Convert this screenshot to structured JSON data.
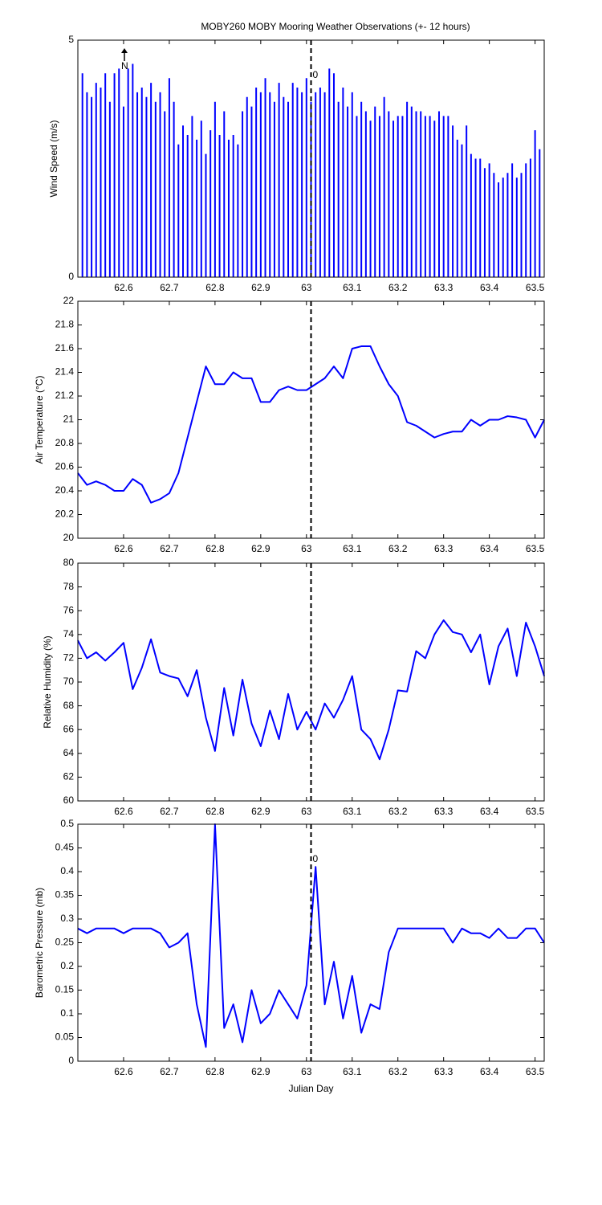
{
  "chart_data": [
    {
      "type": "stick",
      "title": "MOBY260 MOBY Mooring Weather Observations (+- 12 hours)",
      "ylabel": "Wind Speed (m/s)",
      "color": "#0000ff",
      "xlim": [
        62.5,
        63.52
      ],
      "xticks": [
        62.6,
        62.7,
        62.8,
        62.9,
        63,
        63.1,
        63.2,
        63.3,
        63.4,
        63.5
      ],
      "ylim": [
        0,
        5
      ],
      "yticks": [
        0,
        5
      ],
      "vline": 63.01,
      "north_label": "N",
      "marker_label": "0",
      "x": [
        62.51,
        62.52,
        62.53,
        62.54,
        62.55,
        62.56,
        62.57,
        62.58,
        62.59,
        62.6,
        62.61,
        62.62,
        62.63,
        62.64,
        62.65,
        62.66,
        62.67,
        62.68,
        62.69,
        62.7,
        62.71,
        62.72,
        62.73,
        62.74,
        62.75,
        62.76,
        62.77,
        62.78,
        62.79,
        62.8,
        62.81,
        62.82,
        62.83,
        62.84,
        62.85,
        62.86,
        62.87,
        62.88,
        62.89,
        62.9,
        62.91,
        62.92,
        62.93,
        62.94,
        62.95,
        62.96,
        62.97,
        62.98,
        62.99,
        63,
        63.01,
        63.02,
        63.03,
        63.04,
        63.05,
        63.06,
        63.07,
        63.08,
        63.09,
        63.1,
        63.11,
        63.12,
        63.13,
        63.14,
        63.15,
        63.16,
        63.17,
        63.18,
        63.19,
        63.2,
        63.21,
        63.22,
        63.23,
        63.24,
        63.25,
        63.26,
        63.27,
        63.28,
        63.29,
        63.3,
        63.31,
        63.32,
        63.33,
        63.34,
        63.35,
        63.36,
        63.37,
        63.38,
        63.39,
        63.4,
        63.41,
        63.42,
        63.43,
        63.44,
        63.45,
        63.46,
        63.47,
        63.48,
        63.49,
        63.5,
        63.51
      ],
      "values": [
        4.3,
        3.9,
        3.8,
        4.1,
        4.0,
        4.3,
        3.7,
        4.3,
        4.4,
        3.6,
        4.4,
        4.5,
        3.9,
        4.0,
        3.8,
        4.1,
        3.7,
        3.9,
        3.5,
        4.2,
        3.7,
        2.8,
        3.2,
        3.0,
        3.4,
        2.9,
        3.3,
        2.6,
        3.1,
        3.7,
        3.0,
        3.5,
        2.9,
        3.0,
        2.8,
        3.5,
        3.8,
        3.6,
        4.0,
        3.9,
        4.2,
        3.9,
        3.7,
        4.1,
        3.8,
        3.7,
        4.1,
        4.0,
        3.9,
        4.2,
        3.7,
        3.9,
        4.0,
        3.9,
        4.4,
        4.3,
        3.7,
        4.0,
        3.6,
        3.9,
        3.4,
        3.7,
        3.5,
        3.3,
        3.6,
        3.4,
        3.8,
        3.5,
        3.3,
        3.4,
        3.4,
        3.7,
        3.6,
        3.5,
        3.5,
        3.4,
        3.4,
        3.3,
        3.5,
        3.4,
        3.4,
        3.2,
        2.9,
        2.8,
        3.2,
        2.6,
        2.5,
        2.5,
        2.3,
        2.4,
        2.2,
        2.0,
        2.1,
        2.2,
        2.4,
        2.1,
        2.2,
        2.4,
        2.5,
        3.1,
        2.7
      ]
    },
    {
      "type": "line",
      "ylabel": "Air Temperature (°C)",
      "color": "#0000ff",
      "xlim": [
        62.5,
        63.52
      ],
      "xticks": [
        62.6,
        62.7,
        62.8,
        62.9,
        63,
        63.1,
        63.2,
        63.3,
        63.4,
        63.5
      ],
      "ylim": [
        20,
        22
      ],
      "yticks": [
        20,
        20.2,
        20.4,
        20.6,
        20.8,
        21,
        21.2,
        21.4,
        21.6,
        21.8,
        22
      ],
      "vline": 63.01,
      "x": [
        62.5,
        62.52,
        62.54,
        62.56,
        62.58,
        62.6,
        62.62,
        62.64,
        62.66,
        62.68,
        62.7,
        62.72,
        62.74,
        62.76,
        62.78,
        62.8,
        62.82,
        62.84,
        62.86,
        62.88,
        62.9,
        62.92,
        62.94,
        62.96,
        62.98,
        63,
        63.02,
        63.04,
        63.06,
        63.08,
        63.1,
        63.12,
        63.14,
        63.16,
        63.18,
        63.2,
        63.22,
        63.24,
        63.26,
        63.28,
        63.3,
        63.32,
        63.34,
        63.36,
        63.38,
        63.4,
        63.42,
        63.44,
        63.46,
        63.48,
        63.5,
        63.52
      ],
      "values": [
        20.55,
        20.45,
        20.48,
        20.45,
        20.4,
        20.4,
        20.5,
        20.45,
        20.3,
        20.33,
        20.38,
        20.55,
        20.85,
        21.15,
        21.45,
        21.3,
        21.3,
        21.4,
        21.35,
        21.35,
        21.15,
        21.15,
        21.25,
        21.28,
        21.25,
        21.25,
        21.3,
        21.35,
        21.45,
        21.35,
        21.6,
        21.62,
        21.62,
        21.45,
        21.3,
        21.2,
        20.98,
        20.95,
        20.9,
        20.85,
        20.88,
        20.9,
        20.9,
        21.0,
        20.95,
        21.0,
        21.0,
        21.03,
        21.02,
        21.0,
        20.85,
        21.0
      ]
    },
    {
      "type": "line",
      "ylabel": "Relative Humidity (%)",
      "color": "#0000ff",
      "xlim": [
        62.5,
        63.52
      ],
      "xticks": [
        62.6,
        62.7,
        62.8,
        62.9,
        63,
        63.1,
        63.2,
        63.3,
        63.4,
        63.5
      ],
      "ylim": [
        60,
        80
      ],
      "yticks": [
        60,
        62,
        64,
        66,
        68,
        70,
        72,
        74,
        76,
        78,
        80
      ],
      "vline": 63.01,
      "x": [
        62.5,
        62.52,
        62.54,
        62.56,
        62.58,
        62.6,
        62.62,
        62.64,
        62.66,
        62.68,
        62.7,
        62.72,
        62.74,
        62.76,
        62.78,
        62.8,
        62.82,
        62.84,
        62.86,
        62.88,
        62.9,
        62.92,
        62.94,
        62.96,
        62.98,
        63,
        63.02,
        63.04,
        63.06,
        63.08,
        63.1,
        63.12,
        63.14,
        63.16,
        63.18,
        63.2,
        63.22,
        63.24,
        63.26,
        63.28,
        63.3,
        63.32,
        63.34,
        63.36,
        63.38,
        63.4,
        63.42,
        63.44,
        63.46,
        63.48,
        63.5,
        63.52
      ],
      "values": [
        73.5,
        72.0,
        72.5,
        71.8,
        72.5,
        73.3,
        69.4,
        71.2,
        73.6,
        70.8,
        70.5,
        70.3,
        68.8,
        71.0,
        67.0,
        64.2,
        69.5,
        65.5,
        70.2,
        66.5,
        64.6,
        67.6,
        65.2,
        69.0,
        66.0,
        67.5,
        66.0,
        68.2,
        67.0,
        68.5,
        70.5,
        66.0,
        65.2,
        63.5,
        66.0,
        69.3,
        69.2,
        72.6,
        72.0,
        74.0,
        75.2,
        74.2,
        74.0,
        72.5,
        74.0,
        69.8,
        73.0,
        74.5,
        70.5,
        75.0,
        73.0,
        70.5
      ]
    },
    {
      "type": "line",
      "ylabel": "Barometric Pressure (mb)",
      "xlabel": "Julian Day",
      "color": "#0000ff",
      "xlim": [
        62.5,
        63.52
      ],
      "xticks": [
        62.6,
        62.7,
        62.8,
        62.9,
        63,
        63.1,
        63.2,
        63.3,
        63.4,
        63.5
      ],
      "ylim": [
        0,
        0.5
      ],
      "yticks": [
        0,
        0.05,
        0.1,
        0.15,
        0.2,
        0.25,
        0.3,
        0.35,
        0.4,
        0.45,
        0.5
      ],
      "vline": 63.01,
      "marker_label": "0",
      "x": [
        62.5,
        62.52,
        62.54,
        62.56,
        62.58,
        62.6,
        62.62,
        62.64,
        62.66,
        62.68,
        62.7,
        62.72,
        62.74,
        62.76,
        62.78,
        62.8,
        62.82,
        62.84,
        62.86,
        62.88,
        62.9,
        62.92,
        62.94,
        62.96,
        62.98,
        63,
        63.02,
        63.04,
        63.06,
        63.08,
        63.1,
        63.12,
        63.14,
        63.16,
        63.18,
        63.2,
        63.22,
        63.24,
        63.26,
        63.28,
        63.3,
        63.32,
        63.34,
        63.36,
        63.38,
        63.4,
        63.42,
        63.44,
        63.46,
        63.48,
        63.5,
        63.52
      ],
      "values": [
        0.28,
        0.27,
        0.28,
        0.28,
        0.28,
        0.27,
        0.28,
        0.28,
        0.28,
        0.27,
        0.24,
        0.25,
        0.27,
        0.12,
        0.03,
        0.5,
        0.07,
        0.12,
        0.04,
        0.15,
        0.08,
        0.1,
        0.15,
        0.12,
        0.09,
        0.16,
        0.41,
        0.12,
        0.21,
        0.09,
        0.18,
        0.06,
        0.12,
        0.11,
        0.23,
        0.28,
        0.28,
        0.28,
        0.28,
        0.28,
        0.28,
        0.25,
        0.28,
        0.27,
        0.27,
        0.26,
        0.28,
        0.26,
        0.26,
        0.28,
        0.28,
        0.25
      ]
    }
  ]
}
